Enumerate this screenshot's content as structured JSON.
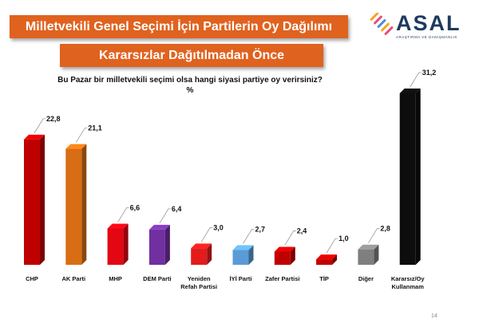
{
  "header": {
    "title": "Milletvekili Genel Seçimi İçin Partilerin Oy Dağılımı",
    "subtitle": "Kararsızlar Dağıtılmadan Önce"
  },
  "logo": {
    "name": "ASAL",
    "tagline": "ARAŞTIRMA VE DANIŞMANLIK",
    "colors": [
      "#f5a623",
      "#e94e77",
      "#4a90d9"
    ]
  },
  "question": "Bu Pazar bir milletvekili seçimi olsa hangi siyasi partiye oy verirsiniz?",
  "unit": "%",
  "page_number": "14",
  "chart_data": {
    "type": "bar",
    "title": "",
    "xlabel": "",
    "ylabel": "",
    "ylim": [
      0,
      31.2
    ],
    "grid": false,
    "legend": "none",
    "categories": [
      [
        "CHP"
      ],
      [
        "AK Parti"
      ],
      [
        "MHP"
      ],
      [
        "DEM Parti"
      ],
      [
        "Yeniden",
        "Refah Partisi"
      ],
      [
        "İYİ Parti"
      ],
      [
        "Zafer Partisi"
      ],
      [
        "TİP"
      ],
      [
        "Diğer"
      ],
      [
        "Kararsız/Oy",
        "Kullanmam"
      ]
    ],
    "values": [
      22.8,
      21.1,
      6.6,
      6.4,
      3.0,
      2.7,
      2.4,
      1.0,
      2.8,
      31.2
    ],
    "value_labels": [
      "22,8",
      "21,1",
      "6,6",
      "6,4",
      "3,0",
      "2,7",
      "2,4",
      "1,0",
      "2,8",
      "31,2"
    ],
    "colors": [
      "#c00000",
      "#d86d14",
      "#e30613",
      "#7030a0",
      "#e31b1b",
      "#5b9bd5",
      "#c00000",
      "#c00000",
      "#7f7f7f",
      "#0d0d0d"
    ]
  }
}
